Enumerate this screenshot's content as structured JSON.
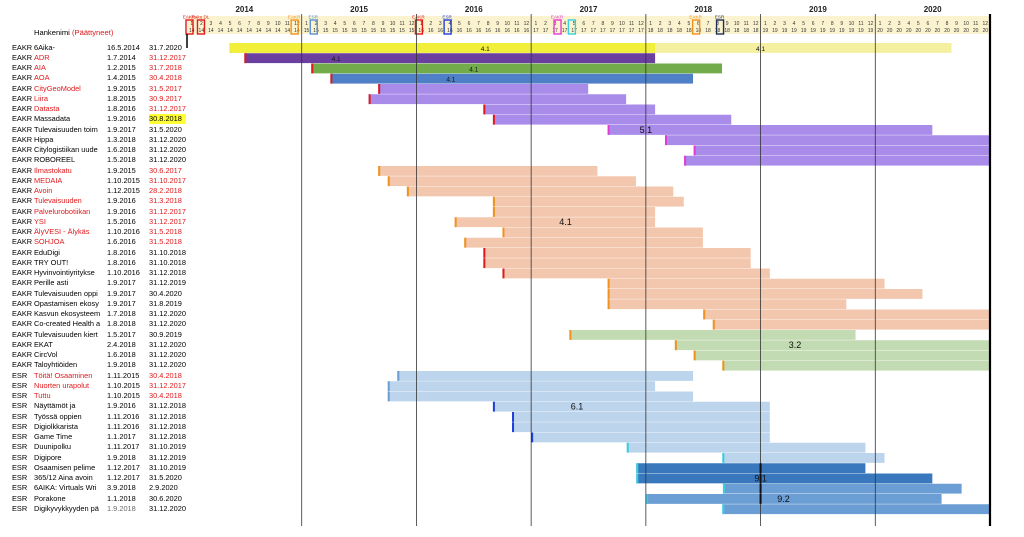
{
  "header": {
    "title": "Hankenimi",
    "title_suffix": "(Päättyneet)",
    "years": [
      "2014",
      "2015",
      "2016",
      "2017",
      "2018",
      "2019",
      "2020"
    ],
    "markers": [
      {
        "text": "EAKR",
        "color": "#e0191c"
      },
      {
        "text": "Raku DL",
        "color": "#e0191c"
      },
      {
        "text": "EAKR",
        "color": "#f0921d"
      },
      {
        "text": "ESR",
        "color": "#5b8fd6"
      },
      {
        "text": "EAKR",
        "color": "#e0191c"
      },
      {
        "text": "ESR",
        "color": "#1f3fd9"
      },
      {
        "text": "EAKR",
        "color": "#e43bd2"
      },
      {
        "text": "EAKR",
        "color": "#f0921d"
      },
      {
        "text": "ESR",
        "color": "#1f2f5c"
      }
    ]
  },
  "colors": {
    "yellow": "#f5f0a0",
    "yellow_strong": "#f2ef3a",
    "purple_dark": "#6a3fa0",
    "green": "#72ab4a",
    "blue_mid": "#4f7fc6",
    "lavender": "#a98bea",
    "peach": "#f3c7ad",
    "sage": "#c3dbb2",
    "light_blue": "#bcd4ec",
    "steel_blue": "#3a78bd",
    "mid_blue": "#6b9ed4",
    "red_line": "#e0191c",
    "orange_line": "#f0921d",
    "magenta_line": "#e43bd2",
    "cyan_line": "#35d0e0",
    "navy_line": "#1f3fd9"
  },
  "rows": [
    {
      "fund": "EAKR",
      "name": "6Aika-",
      "start": "16.5.2014",
      "end": "31.7.2020",
      "ended": false
    },
    {
      "fund": "EAKR",
      "name": "ADR",
      "start": "1.7.2014",
      "end": "31.12.2017",
      "ended": true
    },
    {
      "fund": "EAKR",
      "name": "AIA",
      "start": "1.2.2015",
      "end": "31.7.2018",
      "ended": true
    },
    {
      "fund": "EAKR",
      "name": "AOA",
      "start": "1.4.2015",
      "end": "30.4.2018",
      "ended": true
    },
    {
      "fund": "EAKR",
      "name": "CityGeoModel",
      "start": "1.9.2015",
      "end": "31.5.2017",
      "ended": true
    },
    {
      "fund": "EAKR",
      "name": "Liira",
      "start": "1.8.2015",
      "end": "30.9.2017",
      "ended": true
    },
    {
      "fund": "EAKR",
      "name": "Datasta",
      "start": "1.8.2016",
      "end": "31.12.2017",
      "ended": true
    },
    {
      "fund": "EAKR",
      "name": "Massadata",
      "start": "1.9.2016",
      "end": "30.8.2018",
      "ended": false,
      "highlight_end": true
    },
    {
      "fund": "EAKR",
      "name": "Tulevaisuuden toim",
      "start": "1.9.2017",
      "end": "31.5.2020",
      "ended": false
    },
    {
      "fund": "EAKR",
      "name": "Hippa",
      "start": "1.3.2018",
      "end": "31.12.2020",
      "ended": false
    },
    {
      "fund": "EAKR",
      "name": "Citylogistiikan uude",
      "start": "1.6.2018",
      "end": "31.12.2020",
      "ended": false
    },
    {
      "fund": "EAKR",
      "name": "ROBOREEL",
      "start": "1.5.2018",
      "end": "31.12.2020",
      "ended": false
    },
    {
      "fund": "EAKR",
      "name": "Ilmastokatu",
      "start": "1.9.2015",
      "end": "30.6.2017",
      "ended": true
    },
    {
      "fund": "EAKR",
      "name": "MEDAIA",
      "start": "1.10.2015",
      "end": "31.10.2017",
      "ended": true
    },
    {
      "fund": "EAKR",
      "name": "Avoin",
      "start": "1.12.2015",
      "end": "28.2.2018",
      "ended": true
    },
    {
      "fund": "EAKR",
      "name": "Tulevaisuuden",
      "start": "1.9.2016",
      "end": "31.3.2018",
      "ended": true
    },
    {
      "fund": "EAKR",
      "name": "Palvelurobotiikan",
      "start": "1.9.2016",
      "end": "31.12.2017",
      "ended": true
    },
    {
      "fund": "EAKR",
      "name": "YSI",
      "start": "1.5.2016",
      "end": "31.12.2017",
      "ended": true
    },
    {
      "fund": "EAKR",
      "name": "ÄlyVESI - Älykäs",
      "start": "1.10.2016",
      "end": "31.5.2018",
      "ended": true
    },
    {
      "fund": "EAKR",
      "name": "SOHJOA",
      "start": "1.6.2016",
      "end": "31.5.2018",
      "ended": true
    },
    {
      "fund": "EAKR",
      "name": "EduDigi",
      "start": "1.8.2016",
      "end": "31.10.2018",
      "ended": false
    },
    {
      "fund": "EAKR",
      "name": "TRY OUT!",
      "start": "1.8.2016",
      "end": "31.10.2018",
      "ended": false
    },
    {
      "fund": "EAKR",
      "name": "Hyvinvointiyritykse",
      "start": "1.10.2016",
      "end": "31.12.2018",
      "ended": false
    },
    {
      "fund": "EAKR",
      "name": "Perille asti",
      "start": "1.9.2017",
      "end": "31.12.2019",
      "ended": false
    },
    {
      "fund": "EAKR",
      "name": "Tulevaisuuden oppi",
      "start": "1.9.2017",
      "end": "30.4.2020",
      "ended": false
    },
    {
      "fund": "EAKR",
      "name": "Opastamisen ekosy",
      "start": "1.9.2017",
      "end": "31.8.2019",
      "ended": false
    },
    {
      "fund": "EAKR",
      "name": "Kasvun ekosysteem",
      "start": "1.7.2018",
      "end": "31.12.2020",
      "ended": false
    },
    {
      "fund": "EAKR",
      "name": "Co-created Health a",
      "start": "1.8.2018",
      "end": "31.12.2020",
      "ended": false
    },
    {
      "fund": "EAKR",
      "name": "Tulevaisuuden kiert",
      "start": "1.5.2017",
      "end": "30.9.2019",
      "ended": false
    },
    {
      "fund": "EAKR",
      "name": "EKAT",
      "start": "2.4.2018",
      "end": "31.12.2020",
      "ended": false
    },
    {
      "fund": "EAKR",
      "name": "CircVol",
      "start": "1.6.2018",
      "end": "31.12.2020",
      "ended": false
    },
    {
      "fund": "EAKR",
      "name": "Taloyhtiöiden",
      "start": "1.9.2018",
      "end": "31.12.2020",
      "ended": false
    },
    {
      "fund": "ESR",
      "name": "Töitä! Osaaminen",
      "start": "1.11.2015",
      "end": "30.4.2018",
      "ended": true
    },
    {
      "fund": "ESR",
      "name": "Nuorten urapolut",
      "start": "1.10.2015",
      "end": "31.12.2017",
      "ended": true
    },
    {
      "fund": "ESR",
      "name": "Tuttu",
      "start": "1.10.2015",
      "end": "30.4.2018",
      "ended": true
    },
    {
      "fund": "ESR",
      "name": "Näyttämöt ja",
      "start": "1.9.2016",
      "end": "31.12.2018",
      "ended": false
    },
    {
      "fund": "ESR",
      "name": "Työssä oppien",
      "start": "1.11.2016",
      "end": "31.12.2018",
      "ended": false
    },
    {
      "fund": "ESR",
      "name": "Digiolkkarista",
      "start": "1.11.2016",
      "end": "31.12.2018",
      "ended": false
    },
    {
      "fund": "ESR",
      "name": "Game Time",
      "start": "1.1.2017",
      "end": "31.12.2018",
      "ended": false
    },
    {
      "fund": "ESR",
      "name": "Duunipolku",
      "start": "1.11.2017",
      "end": "31.10.2019",
      "ended": false
    },
    {
      "fund": "ESR",
      "name": "Digipore",
      "start": "1.9.2018",
      "end": "31.12.2019",
      "ended": false
    },
    {
      "fund": "ESR",
      "name": "Osaamisen pelime",
      "start": "1.12.2017",
      "end": "31.10.2019",
      "ended": false
    },
    {
      "fund": "ESR",
      "name": "365/12 Aina avoin",
      "start": "1.12.2017",
      "end": "31.5.2020",
      "ended": false
    },
    {
      "fund": "ESR",
      "name": "6AIKA: Virtuals Wri",
      "start": "3.9.2018",
      "end": "2.9.2020",
      "ended": false
    },
    {
      "fund": "ESR",
      "name": "Porakone",
      "start": "1.1.2018",
      "end": "30.6.2020",
      "ended": false
    },
    {
      "fund": "ESR",
      "name": "Digikyvykkyyden pä",
      "start": "1.9.2018",
      "end": "31.12.2020",
      "ended": false,
      "gray_start": true
    }
  ],
  "bar_labels": [
    {
      "text": "4.1",
      "row": 0,
      "col": "2016.6"
    },
    {
      "text": "4.1",
      "row": 0,
      "col": "2019.0"
    },
    {
      "text": "4.1",
      "row": 1,
      "col": "2015.3"
    },
    {
      "text": "4.1",
      "row": 2,
      "col": "2016.5"
    },
    {
      "text": "4.1",
      "row": 3,
      "col": "2016.3"
    },
    {
      "text": "5.1",
      "row": 8,
      "col": "2018.0"
    },
    {
      "text": "4.1",
      "row": 17,
      "col": "2017.3"
    },
    {
      "text": "3.2",
      "row": 29,
      "col": "2019.3"
    },
    {
      "text": "6.1",
      "row": 35,
      "col": "2017.4"
    },
    {
      "text": "9.1",
      "row": 42,
      "col": "2019.0"
    },
    {
      "text": "9.2",
      "row": 44,
      "col": "2019.2"
    }
  ]
}
